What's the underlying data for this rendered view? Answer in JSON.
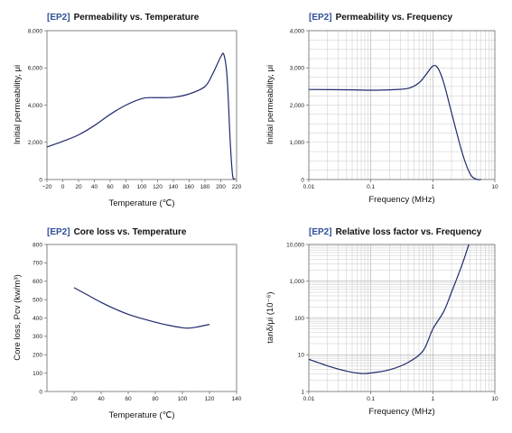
{
  "chart_data": [
    {
      "type": "line",
      "tag": "[EP2]",
      "title": "Permeability vs. Temperature",
      "xlabel": "Temperature (℃)",
      "ylabel": "Initial permeability, μi",
      "xscale": "linear",
      "yscale": "linear",
      "xlim": [
        -20,
        220
      ],
      "ylim": [
        0,
        8000
      ],
      "xticks": [
        -20,
        0,
        20,
        40,
        60,
        80,
        100,
        120,
        140,
        160,
        180,
        200,
        220
      ],
      "xtick_labels": [
        "−20",
        "0",
        "20",
        "40",
        "60",
        "80",
        "100",
        "120",
        "140",
        "160",
        "180",
        "200",
        "220"
      ],
      "yticks": [
        0,
        2000,
        4000,
        6000,
        8000
      ],
      "ytick_labels": [
        "0",
        "2,000",
        "4,000",
        "6,000",
        "8,000"
      ],
      "grid": false,
      "series": [
        {
          "x": [
            -20,
            0,
            20,
            40,
            60,
            80,
            100,
            110,
            120,
            140,
            160,
            180,
            190,
            200,
            204,
            208,
            212,
            215,
            218
          ],
          "y": [
            1750,
            2050,
            2400,
            2900,
            3500,
            4000,
            4350,
            4400,
            4400,
            4420,
            4600,
            5000,
            5700,
            6600,
            6700,
            5500,
            2000,
            200,
            50
          ]
        }
      ]
    },
    {
      "type": "line",
      "tag": "[EP2]",
      "title": "Permeability vs. Frequency",
      "xlabel": "Frequency (MHz)",
      "ylabel": "Initial permeability, μi",
      "xscale": "log",
      "yscale": "linear",
      "xlim": [
        0.01,
        10
      ],
      "ylim": [
        0,
        4000
      ],
      "xticks": [
        0.01,
        0.1,
        1,
        10
      ],
      "xtick_labels": [
        "0.01",
        "0.1",
        "1",
        "10"
      ],
      "yticks": [
        0,
        1000,
        2000,
        3000,
        4000
      ],
      "ytick_labels": [
        "0",
        "1,000",
        "2,000",
        "3,000",
        "4,000"
      ],
      "grid": true,
      "series": [
        {
          "x": [
            0.01,
            0.05,
            0.1,
            0.2,
            0.4,
            0.6,
            0.8,
            1.0,
            1.2,
            1.5,
            2.0,
            3.0,
            4.0,
            5.0,
            6.0
          ],
          "y": [
            2420,
            2410,
            2400,
            2410,
            2450,
            2600,
            2850,
            3050,
            3000,
            2600,
            1800,
            700,
            150,
            10,
            0
          ]
        }
      ]
    },
    {
      "type": "line",
      "tag": "[EP2]",
      "title": "Core loss vs. Temperature",
      "xlabel": "Temperature (℃)",
      "ylabel": "Core loss, Pcv (kw/m³)",
      "xscale": "linear",
      "yscale": "linear",
      "xlim": [
        0,
        140
      ],
      "ylim": [
        0,
        800
      ],
      "xticks": [
        20,
        40,
        60,
        80,
        100,
        120,
        140
      ],
      "xtick_labels": [
        "20",
        "40",
        "60",
        "80",
        "100",
        "120",
        "140"
      ],
      "yticks": [
        0,
        100,
        200,
        300,
        400,
        500,
        600,
        700,
        800
      ],
      "ytick_labels": [
        "0",
        "100",
        "200",
        "300",
        "400",
        "500",
        "600",
        "700",
        "800"
      ],
      "grid": false,
      "series": [
        {
          "x": [
            20,
            30,
            40,
            50,
            60,
            70,
            80,
            90,
            100,
            105,
            110,
            120
          ],
          "y": [
            565,
            525,
            485,
            450,
            420,
            397,
            377,
            360,
            347,
            345,
            350,
            365
          ]
        }
      ]
    },
    {
      "type": "line",
      "tag": "[EP2]",
      "title": "Relative loss factor vs. Frequency",
      "xlabel": "Frequency (MHz)",
      "ylabel": "tanδ/μi (10⁻⁶)",
      "xscale": "log",
      "yscale": "log",
      "xlim": [
        0.01,
        10
      ],
      "ylim": [
        1,
        10000
      ],
      "xticks": [
        0.01,
        0.1,
        1,
        10
      ],
      "xtick_labels": [
        "0.01",
        "0.1",
        "1",
        "10"
      ],
      "yticks": [
        1,
        10,
        100,
        1000,
        10000
      ],
      "ytick_labels": [
        "1",
        "10",
        "100",
        "1,000",
        "10,000"
      ],
      "grid": true,
      "series": [
        {
          "x": [
            0.01,
            0.02,
            0.04,
            0.07,
            0.1,
            0.2,
            0.4,
            0.7,
            1.0,
            1.5,
            2.0,
            3.0,
            3.8
          ],
          "y": [
            7.5,
            5.0,
            3.6,
            3.1,
            3.2,
            3.9,
            6.2,
            13,
            50,
            150,
            500,
            3000,
            10000
          ]
        }
      ]
    }
  ]
}
